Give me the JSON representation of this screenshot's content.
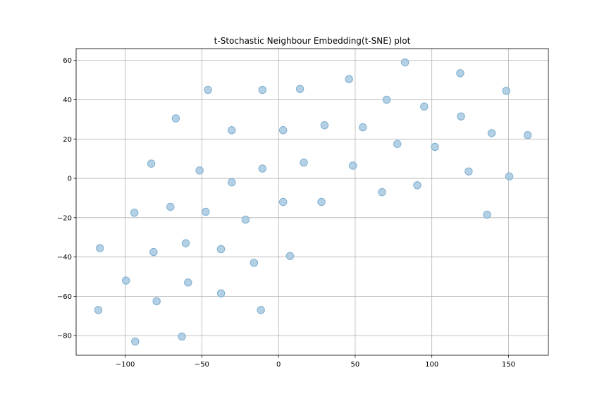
{
  "chart_data": {
    "type": "scatter",
    "title": "t-Stochastic Neighbour Embedding(t-SNE) plot",
    "xlabel": "",
    "ylabel": "",
    "xlim": [
      -132,
      176
    ],
    "ylim": [
      -90,
      66
    ],
    "xticks": [
      -100,
      -50,
      0,
      50,
      100,
      150
    ],
    "yticks": [
      -80,
      -60,
      -40,
      -20,
      0,
      20,
      40,
      60
    ],
    "xtick_labels": [
      "−100",
      "−50",
      "0",
      "50",
      "100",
      "150"
    ],
    "ytick_labels": [
      "−80",
      "−60",
      "−40",
      "−20",
      "0",
      "20",
      "40",
      "60"
    ],
    "grid": true,
    "marker_color": "#a6c8e0",
    "marker_edge_color": "#7fafd0",
    "points": [
      {
        "x": 82.5,
        "y": 59
      },
      {
        "x": 118.5,
        "y": 53.5
      },
      {
        "x": 46,
        "y": 50.5
      },
      {
        "x": -46,
        "y": 45
      },
      {
        "x": -10.5,
        "y": 45
      },
      {
        "x": 14,
        "y": 45.5
      },
      {
        "x": 148.5,
        "y": 44.5
      },
      {
        "x": 70.5,
        "y": 40
      },
      {
        "x": 95,
        "y": 36.5
      },
      {
        "x": -67,
        "y": 30.5
      },
      {
        "x": 119,
        "y": 31.5
      },
      {
        "x": 30,
        "y": 27
      },
      {
        "x": 55,
        "y": 26
      },
      {
        "x": -30.5,
        "y": 24.5
      },
      {
        "x": 3,
        "y": 24.5
      },
      {
        "x": 139,
        "y": 23
      },
      {
        "x": 162.5,
        "y": 22
      },
      {
        "x": 77.5,
        "y": 17.5
      },
      {
        "x": 102,
        "y": 16
      },
      {
        "x": -83,
        "y": 7.5
      },
      {
        "x": 16.5,
        "y": 8
      },
      {
        "x": 48.5,
        "y": 6.5
      },
      {
        "x": -10.5,
        "y": 5
      },
      {
        "x": -51.5,
        "y": 4
      },
      {
        "x": 124,
        "y": 3.5
      },
      {
        "x": 150.5,
        "y": 1
      },
      {
        "x": -30.5,
        "y": -2
      },
      {
        "x": 90.5,
        "y": -3.5
      },
      {
        "x": 67.5,
        "y": -7
      },
      {
        "x": 3,
        "y": -12
      },
      {
        "x": 28,
        "y": -12
      },
      {
        "x": -70.5,
        "y": -14.5
      },
      {
        "x": -94,
        "y": -17.5
      },
      {
        "x": -47.5,
        "y": -17
      },
      {
        "x": 136,
        "y": -18.5
      },
      {
        "x": -21.5,
        "y": -21
      },
      {
        "x": -60.5,
        "y": -33
      },
      {
        "x": -116.5,
        "y": -35.5
      },
      {
        "x": -37.5,
        "y": -36
      },
      {
        "x": -81.5,
        "y": -37.5
      },
      {
        "x": 7.5,
        "y": -39.5
      },
      {
        "x": -16,
        "y": -43
      },
      {
        "x": -99.5,
        "y": -52
      },
      {
        "x": -59,
        "y": -53
      },
      {
        "x": -37.5,
        "y": -58.5
      },
      {
        "x": -79.5,
        "y": -62.5
      },
      {
        "x": -117.5,
        "y": -67
      },
      {
        "x": -11.5,
        "y": -67
      },
      {
        "x": -63,
        "y": -80.5
      },
      {
        "x": -93.5,
        "y": -83
      }
    ]
  }
}
